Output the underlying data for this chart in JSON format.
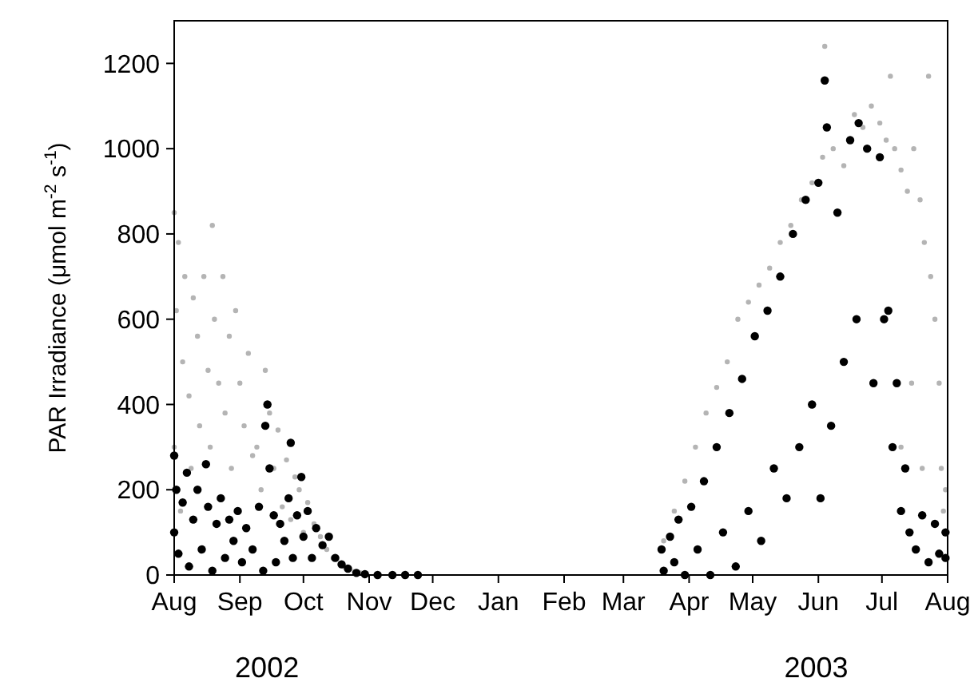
{
  "chart_data": {
    "type": "scatter",
    "ylabel": "PAR Irradiance (μmol m$^{-2}$ s$^{-1}$)",
    "marker": "circle",
    "grid": false,
    "xlim": [
      "2002-08-01",
      "2003-08-01"
    ],
    "xticks": [
      {
        "value": "2002-08-01",
        "label": "Aug"
      },
      {
        "value": "2002-09-01",
        "label": "Sep"
      },
      {
        "value": "2002-10-01",
        "label": "Oct"
      },
      {
        "value": "2002-11-01",
        "label": "Nov"
      },
      {
        "value": "2002-12-01",
        "label": "Dec"
      },
      {
        "value": "2003-01-01",
        "label": "Jan"
      },
      {
        "value": "2003-02-01",
        "label": "Feb"
      },
      {
        "value": "2003-03-01",
        "label": "Mar"
      },
      {
        "value": "2003-04-01",
        "label": "Apr"
      },
      {
        "value": "2003-05-01",
        "label": "May"
      },
      {
        "value": "2003-06-01",
        "label": "Jun"
      },
      {
        "value": "2003-07-01",
        "label": "Jul"
      },
      {
        "value": "2003-08-01",
        "label": "Aug"
      }
    ],
    "ylim": [
      0,
      1300
    ],
    "yticks": [
      0,
      200,
      400,
      600,
      800,
      1000,
      1200
    ],
    "annotations": [
      "2002",
      "2003"
    ],
    "series": [
      {
        "color": "#b4b4b4",
        "x": [
          "2002-08-01",
          "2002-08-01",
          "2002-08-02",
          "2002-08-03",
          "2002-08-04",
          "2002-08-05",
          "2002-08-06",
          "2002-08-08",
          "2002-08-09",
          "2002-08-10",
          "2002-08-12",
          "2002-08-13",
          "2002-08-15",
          "2002-08-17",
          "2002-08-18",
          "2002-08-19",
          "2002-08-20",
          "2002-08-22",
          "2002-08-24",
          "2002-08-25",
          "2002-08-27",
          "2002-08-28",
          "2002-08-30",
          "2002-09-01",
          "2002-09-03",
          "2002-09-05",
          "2002-09-07",
          "2002-09-09",
          "2002-09-11",
          "2002-09-13",
          "2002-09-15",
          "2002-09-17",
          "2002-09-19",
          "2002-09-21",
          "2002-09-23",
          "2002-09-25",
          "2002-09-27",
          "2002-09-29",
          "2002-10-01",
          "2002-10-03",
          "2002-10-06",
          "2002-10-09",
          "2002-10-12",
          "2002-10-15",
          "2002-10-20",
          "2002-10-25",
          "2002-10-28",
          "2003-03-20",
          "2003-03-25",
          "2003-03-30",
          "2003-04-04",
          "2003-04-09",
          "2003-04-14",
          "2003-04-19",
          "2003-04-24",
          "2003-04-29",
          "2003-05-04",
          "2003-05-09",
          "2003-05-14",
          "2003-05-19",
          "2003-05-24",
          "2003-05-29",
          "2003-06-03",
          "2003-06-04",
          "2003-06-08",
          "2003-06-13",
          "2003-06-18",
          "2003-06-22",
          "2003-06-26",
          "2003-06-30",
          "2003-07-03",
          "2003-07-05",
          "2003-07-07",
          "2003-07-10",
          "2003-07-10",
          "2003-07-13",
          "2003-07-15",
          "2003-07-16",
          "2003-07-19",
          "2003-07-20",
          "2003-07-21",
          "2003-07-23",
          "2003-07-24",
          "2003-07-26",
          "2003-07-28",
          "2003-07-29",
          "2003-07-30",
          "2003-07-31"
        ],
        "values": [
          850,
          300,
          620,
          780,
          150,
          500,
          700,
          420,
          250,
          650,
          560,
          350,
          700,
          480,
          300,
          820,
          600,
          450,
          700,
          380,
          560,
          250,
          620,
          450,
          350,
          520,
          280,
          300,
          200,
          480,
          380,
          250,
          340,
          160,
          270,
          130,
          230,
          200,
          100,
          170,
          120,
          90,
          60,
          40,
          20,
          8,
          5,
          80,
          150,
          220,
          300,
          380,
          440,
          500,
          600,
          640,
          680,
          720,
          780,
          820,
          880,
          920,
          980,
          1240,
          1000,
          960,
          1080,
          1050,
          1100,
          1060,
          1020,
          1170,
          1000,
          950,
          300,
          900,
          450,
          1000,
          880,
          250,
          780,
          1170,
          700,
          600,
          450,
          250,
          150,
          200
        ]
      },
      {
        "color": "#000000",
        "x": [
          "2002-08-01",
          "2002-08-01",
          "2002-08-02",
          "2002-08-03",
          "2002-08-05",
          "2002-08-07",
          "2002-08-08",
          "2002-08-10",
          "2002-08-12",
          "2002-08-14",
          "2002-08-16",
          "2002-08-17",
          "2002-08-19",
          "2002-08-21",
          "2002-08-23",
          "2002-08-25",
          "2002-08-27",
          "2002-08-29",
          "2002-08-31",
          "2002-09-02",
          "2002-09-04",
          "2002-09-07",
          "2002-09-10",
          "2002-09-12",
          "2002-09-13",
          "2002-09-14",
          "2002-09-15",
          "2002-09-17",
          "2002-09-18",
          "2002-09-20",
          "2002-09-22",
          "2002-09-24",
          "2002-09-25",
          "2002-09-26",
          "2002-09-28",
          "2002-09-30",
          "2002-10-01",
          "2002-10-03",
          "2002-10-05",
          "2002-10-07",
          "2002-10-10",
          "2002-10-13",
          "2002-10-16",
          "2002-10-19",
          "2002-10-22",
          "2002-10-26",
          "2002-10-30",
          "2002-11-05",
          "2002-11-12",
          "2002-11-18",
          "2002-11-24",
          "2003-03-19",
          "2003-03-20",
          "2003-03-23",
          "2003-03-25",
          "2003-03-27",
          "2003-03-30",
          "2003-04-02",
          "2003-04-05",
          "2003-04-08",
          "2003-04-11",
          "2003-04-14",
          "2003-04-17",
          "2003-04-20",
          "2003-04-23",
          "2003-04-26",
          "2003-04-29",
          "2003-05-02",
          "2003-05-05",
          "2003-05-08",
          "2003-05-11",
          "2003-05-14",
          "2003-05-17",
          "2003-05-20",
          "2003-05-23",
          "2003-05-26",
          "2003-05-29",
          "2003-06-01",
          "2003-06-02",
          "2003-06-04",
          "2003-06-05",
          "2003-06-07",
          "2003-06-10",
          "2003-06-13",
          "2003-06-16",
          "2003-06-19",
          "2003-06-20",
          "2003-06-24",
          "2003-06-27",
          "2003-06-30",
          "2003-07-02",
          "2003-07-04",
          "2003-07-06",
          "2003-07-08",
          "2003-07-10",
          "2003-07-12",
          "2003-07-14",
          "2003-07-17",
          "2003-07-20",
          "2003-07-23",
          "2003-07-26",
          "2003-07-28",
          "2003-07-31",
          "2003-07-31"
        ],
        "values": [
          280,
          100,
          200,
          50,
          170,
          240,
          20,
          130,
          200,
          60,
          260,
          160,
          10,
          120,
          180,
          40,
          130,
          80,
          150,
          30,
          110,
          60,
          160,
          10,
          350,
          400,
          250,
          140,
          30,
          120,
          80,
          180,
          310,
          40,
          140,
          230,
          90,
          150,
          40,
          110,
          70,
          90,
          40,
          25,
          15,
          5,
          2,
          0,
          0,
          0,
          0,
          60,
          10,
          90,
          30,
          130,
          0,
          160,
          60,
          220,
          0,
          300,
          100,
          380,
          20,
          460,
          150,
          560,
          80,
          620,
          250,
          700,
          180,
          800,
          300,
          880,
          400,
          920,
          180,
          1160,
          1050,
          350,
          850,
          500,
          1020,
          600,
          1060,
          1000,
          450,
          980,
          600,
          620,
          300,
          450,
          150,
          250,
          100,
          60,
          140,
          30,
          120,
          50,
          100,
          40
        ]
      }
    ]
  }
}
